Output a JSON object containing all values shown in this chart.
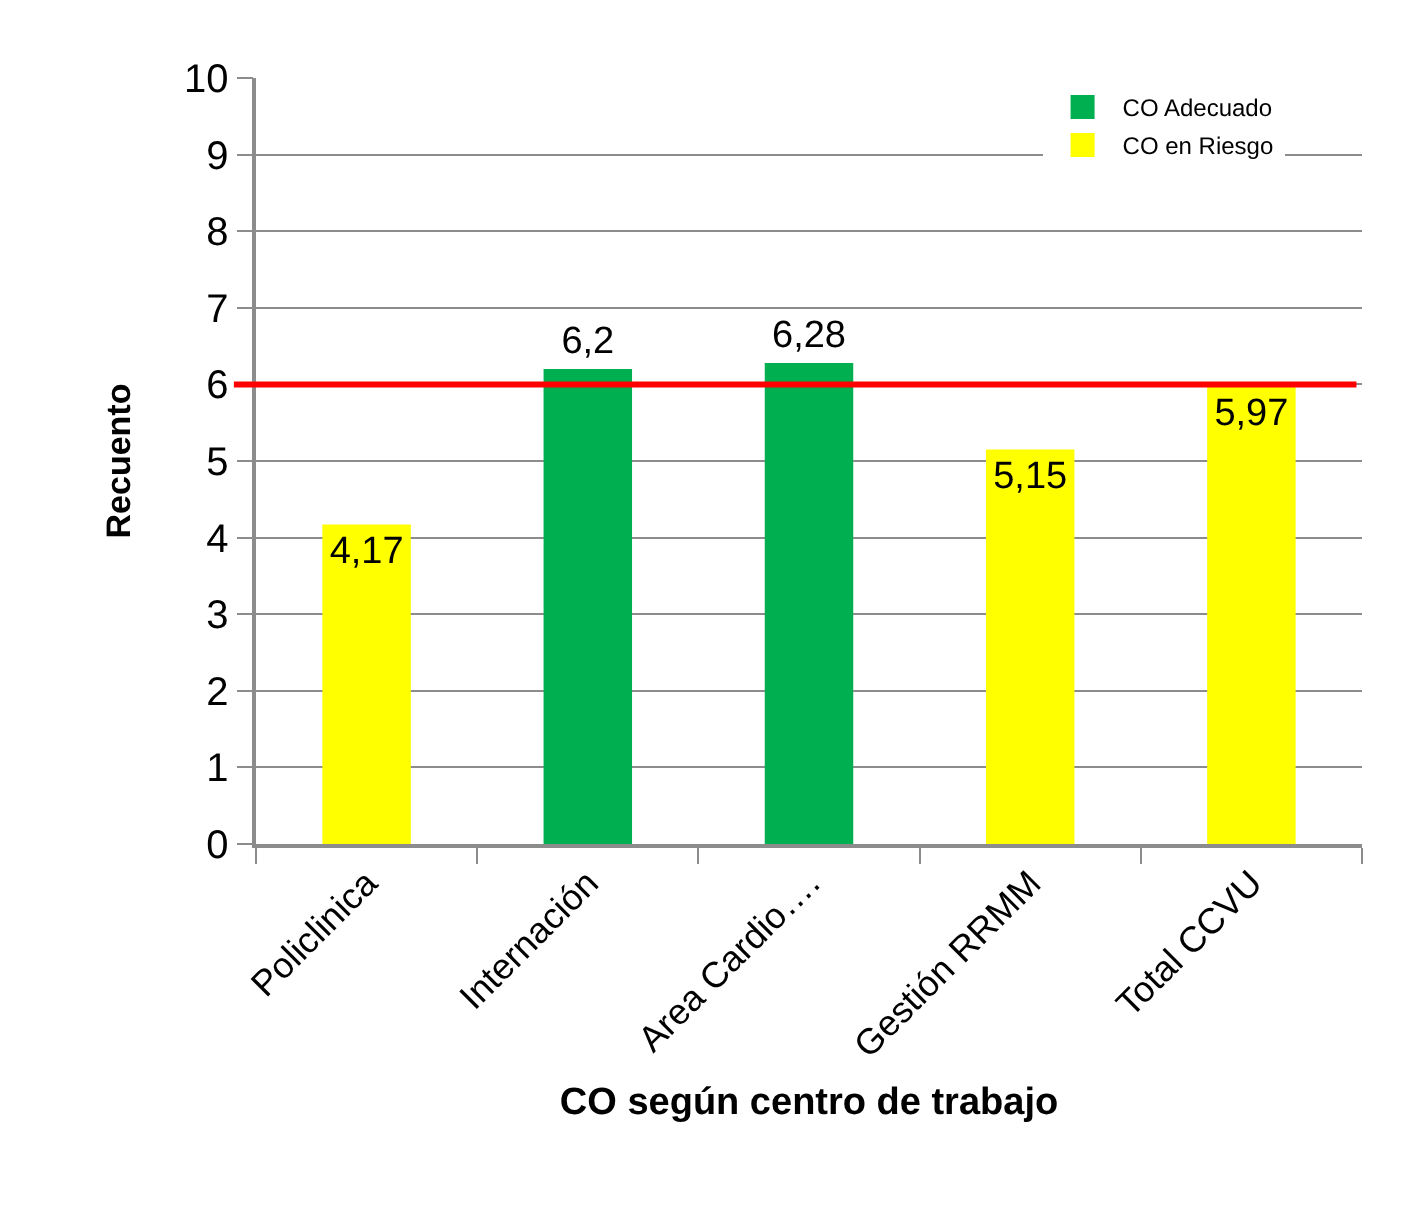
{
  "chart_data": {
    "type": "bar",
    "xlabel": "CO según centro de trabajo",
    "ylabel": "Recuento",
    "categories": [
      "Policlinica",
      "Internación",
      "Area Cardio….",
      "Gestión RRMM",
      "Total CCVU"
    ],
    "series": [
      {
        "name": "CO Adecuado",
        "color": "#00b050",
        "values": [
          null,
          6.2,
          6.28,
          null,
          null
        ],
        "value_labels": [
          null,
          "6,2",
          "6,28",
          null,
          null
        ]
      },
      {
        "name": "CO en Riesgo",
        "color": "#ffff00",
        "values": [
          4.17,
          null,
          null,
          5.15,
          5.97
        ],
        "value_labels": [
          "4,17",
          null,
          null,
          "5,15",
          "5,97"
        ]
      }
    ],
    "ylim": [
      0,
      10
    ],
    "yticks": [
      0,
      1,
      2,
      3,
      4,
      5,
      6,
      7,
      8,
      9,
      10
    ],
    "grid": "y",
    "legend": "top right",
    "ref_lines": [
      {
        "axis": "y",
        "value": 6,
        "color": "#ff0000"
      }
    ]
  }
}
